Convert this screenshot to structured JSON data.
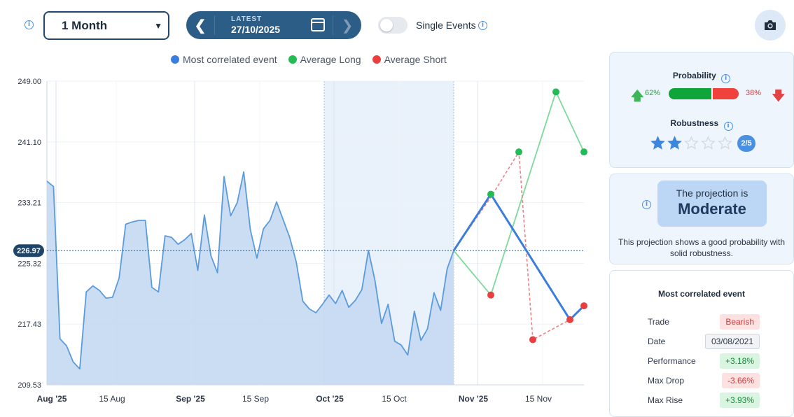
{
  "toolbar": {
    "period": "1 Month",
    "date_label": "LATEST",
    "date_value": "27/10/2025",
    "single_events_label": "Single Events"
  },
  "legend": [
    {
      "name": "Most correlated event",
      "color": "#3b7ddd"
    },
    {
      "name": "Average Long",
      "color": "#22bb55"
    },
    {
      "name": "Average Short",
      "color": "#e84040"
    }
  ],
  "chart_data": {
    "type": "line",
    "y_ticks": [
      "249.00",
      "241.10",
      "233.21",
      "225.32",
      "217.43",
      "209.53"
    ],
    "ylim": [
      209.53,
      249.0
    ],
    "current_value": "226.97",
    "x_tick_labels": [
      {
        "label": "Aug '25",
        "bold": true
      },
      {
        "label": "15 Aug",
        "bold": false
      },
      {
        "label": "Sep '25",
        "bold": true
      },
      {
        "label": "15 Sep",
        "bold": false
      },
      {
        "label": "Oct '25",
        "bold": true
      },
      {
        "label": "15 Oct",
        "bold": false
      },
      {
        "label": "Nov '25",
        "bold": true
      },
      {
        "label": "15 Nov",
        "bold": false
      }
    ],
    "price_series": [
      236.0,
      235.3,
      215.5,
      214.6,
      212.5,
      211.6,
      221.6,
      222.4,
      221.8,
      220.8,
      220.9,
      223.4,
      230.4,
      230.7,
      230.9,
      230.9,
      222.2,
      221.6,
      228.9,
      228.7,
      227.8,
      228.4,
      229.2,
      224.4,
      231.6,
      226.3,
      224.1,
      236.6,
      231.5,
      233.2,
      237.2,
      229.7,
      226.0,
      229.8,
      230.9,
      233.3,
      231.0,
      228.7,
      225.5,
      220.4,
      219.4,
      218.9,
      220.0,
      221.2,
      220.1,
      221.8,
      219.6,
      220.5,
      221.9,
      227.0,
      223.1,
      217.5,
      220.0,
      215.2,
      214.7,
      213.4,
      219.1,
      215.3,
      216.8,
      221.5,
      219.2,
      224.6,
      226.97
    ],
    "highlight_region": [
      "Oct '25",
      "27/10/2025"
    ],
    "projections": {
      "most_correlated": [
        226.97,
        234.3,
        218.0,
        219.8
      ],
      "average_long": [
        226.97,
        221.2,
        239.8,
        247.6,
        239.8
      ],
      "average_short": [
        226.97,
        233.9,
        239.8,
        215.4,
        218.0,
        219.8
      ]
    }
  },
  "probability": {
    "title": "Probability",
    "long_pct": "62%",
    "short_pct": "38%",
    "long_fraction": 0.62
  },
  "robustness": {
    "title": "Robustness",
    "score": 2,
    "max": 5,
    "badge": "2/5"
  },
  "projection": {
    "prefix": "The projection is",
    "value": "Moderate",
    "description": "This projection shows a good probability with solid robustness."
  },
  "most_correlated_event": {
    "title": "Most correlated event",
    "rows": [
      {
        "key": "Trade",
        "value": "Bearish",
        "style": "bear"
      },
      {
        "key": "Date",
        "value": "03/08/2021",
        "style": "date"
      },
      {
        "key": "Performance",
        "value": "+3.18%",
        "style": "pos"
      },
      {
        "key": "Max Drop",
        "value": "-3.66%",
        "style": "neg"
      },
      {
        "key": "Max Rise",
        "value": "+3.93%",
        "style": "pos"
      }
    ]
  },
  "colors": {
    "accent": "#2c5d86",
    "area_fill": "#c5d9f2",
    "line": "#5b9bdc",
    "long": "#22bb55",
    "short": "#e84040",
    "correlated": "#3b7ddd"
  }
}
